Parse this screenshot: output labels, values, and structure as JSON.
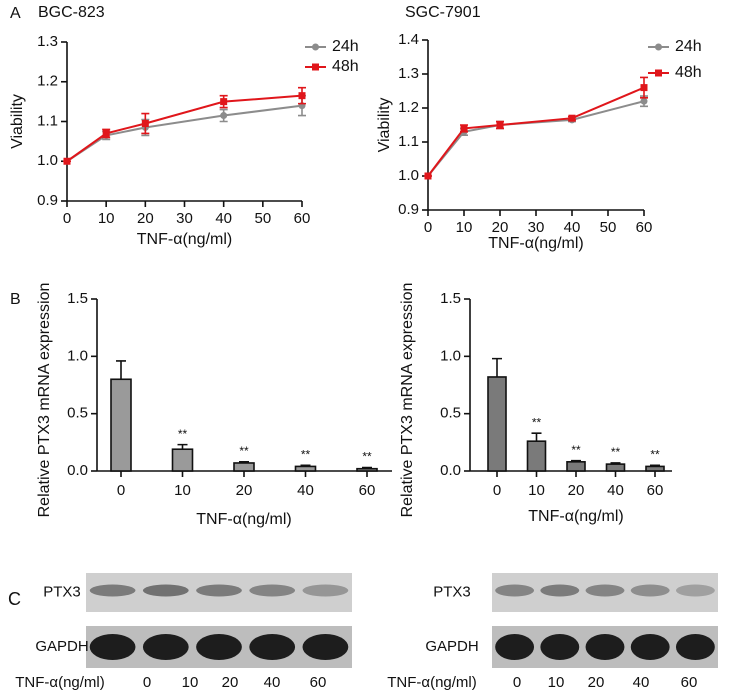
{
  "panel_labels": [
    "A",
    "B",
    "C"
  ],
  "chart_data": [
    {
      "type": "line",
      "title": "BGC-823",
      "x_label": "TNF-α(ng/ml)",
      "y_label": "Viability",
      "x": [
        0,
        10,
        20,
        40,
        60
      ],
      "xlim": [
        0,
        60
      ],
      "xticks": [
        0,
        10,
        20,
        30,
        40,
        50,
        60
      ],
      "ylim": [
        0.9,
        1.3
      ],
      "yticks": [
        0.9,
        {
          "value": 1,
          "label": "1.0"
        },
        1.1,
        1.2,
        1.3
      ],
      "series": [
        {
          "name": "24h",
          "color": "#8c8c8c",
          "marker": "circle",
          "values": [
            1.0,
            1.065,
            1.085,
            1.115,
            1.14
          ],
          "errors": [
            0,
            0.01,
            0.02,
            0.015,
            0.025
          ]
        },
        {
          "name": "48h",
          "color": "#e0161b",
          "marker": "square",
          "values": [
            1.0,
            1.07,
            1.095,
            1.15,
            1.165
          ],
          "errors": [
            0,
            0.01,
            0.025,
            0.015,
            0.02
          ]
        }
      ]
    },
    {
      "type": "line",
      "title": "SGC-7901",
      "x_label": "TNF-α(ng/ml)",
      "y_label": "Viability",
      "x": [
        0,
        10,
        20,
        40,
        60
      ],
      "xlim": [
        0,
        60
      ],
      "xticks": [
        0,
        10,
        20,
        30,
        40,
        50,
        60
      ],
      "ylim": [
        0.9,
        1.4
      ],
      "yticks": [
        0.9,
        {
          "value": 1,
          "label": "1.0"
        },
        1.1,
        1.2,
        1.3,
        1.4
      ],
      "series": [
        {
          "name": "24h",
          "color": "#8c8c8c",
          "marker": "circle",
          "values": [
            1.0,
            1.13,
            1.15,
            1.165,
            1.22
          ],
          "errors": [
            0,
            0.01,
            0.01,
            0.005,
            0.015
          ]
        },
        {
          "name": "48h",
          "color": "#e0161b",
          "marker": "square",
          "values": [
            1.0,
            1.14,
            1.15,
            1.17,
            1.26
          ],
          "errors": [
            0,
            0.01,
            0.01,
            0.005,
            0.03
          ]
        }
      ]
    },
    {
      "type": "bar",
      "x_label": "TNF-α(ng/ml)",
      "y_label": "Relative PTX3 mRNA expression",
      "categories": [
        "0",
        "10",
        "20",
        "40",
        "60"
      ],
      "color": "#9a9a9a",
      "values": [
        0.8,
        0.19,
        0.07,
        0.04,
        0.02
      ],
      "errors": [
        0.16,
        0.04,
        0.01,
        0.01,
        0.01
      ],
      "annotations": [
        null,
        "**",
        "**",
        "**",
        "**"
      ],
      "ylim": [
        0,
        1.5
      ],
      "yticks": [
        {
          "value": 0,
          "label": "0.0"
        },
        0.5,
        {
          "value": 1,
          "label": "1.0"
        },
        1.5
      ]
    },
    {
      "type": "bar",
      "x_label": "TNF-α(ng/ml)",
      "y_label": "Relative PTX3 mRNA expression",
      "categories": [
        "0",
        "10",
        "20",
        "40",
        "60"
      ],
      "color": "#7a7a7a",
      "values": [
        0.82,
        0.26,
        0.08,
        0.06,
        0.04
      ],
      "errors": [
        0.16,
        0.07,
        0.01,
        0.01,
        0.01
      ],
      "annotations": [
        null,
        "**",
        "**",
        "**",
        "**"
      ],
      "ylim": [
        0,
        1.5
      ],
      "yticks": [
        {
          "value": 0,
          "label": "0.0"
        },
        0.5,
        {
          "value": 1,
          "label": "1.0"
        },
        1.5
      ]
    }
  ],
  "blots": [
    {
      "rows": [
        "PTX3",
        "GAPDH"
      ],
      "treatment_label": "TNF-α(ng/ml)",
      "lanes": [
        "0",
        "10",
        "20",
        "40",
        "60"
      ]
    },
    {
      "rows": [
        "PTX3",
        "GAPDH"
      ],
      "treatment_label": "TNF-α(ng/ml)",
      "lanes": [
        "0",
        "10",
        "20",
        "40",
        "60"
      ]
    }
  ]
}
